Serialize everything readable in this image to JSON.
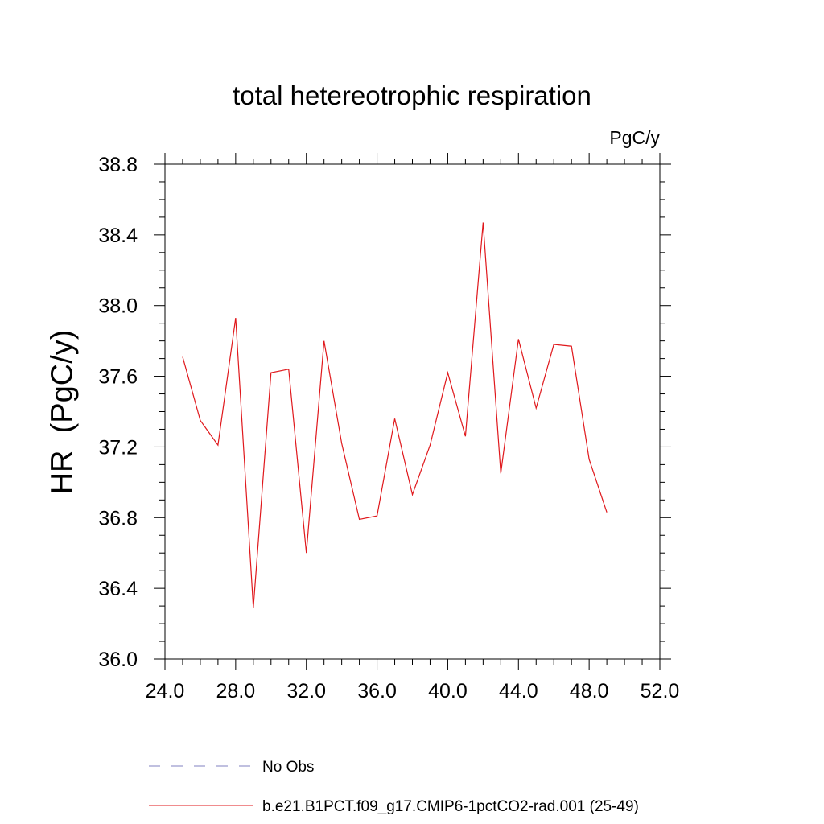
{
  "chart_data": {
    "type": "line",
    "title": "total hetereotrophic respiration",
    "units_label": "PgC/y",
    "ylabel": "HR  (PgC/y)",
    "xlabel": "",
    "xlim": [
      24,
      52
    ],
    "ylim": [
      36.0,
      38.8
    ],
    "xticks": [
      "24.0",
      "28.0",
      "32.0",
      "36.0",
      "40.0",
      "44.0",
      "48.0",
      "52.0"
    ],
    "yticks": [
      "36.0",
      "36.4",
      "36.8",
      "37.2",
      "37.6",
      "38.0",
      "38.4",
      "38.8"
    ],
    "grid": false,
    "legend_position": "bottom",
    "series": [
      {
        "name": "No Obs",
        "color": "#8080c0",
        "style": "dashed",
        "x": [],
        "y": []
      },
      {
        "name": "b.e21.B1PCT.f09_g17.CMIP6-1pctCO2-rad.001 (25-49)",
        "color": "#e0181c",
        "style": "solid",
        "x": [
          25,
          26,
          27,
          28,
          29,
          30,
          31,
          32,
          33,
          34,
          35,
          36,
          37,
          38,
          39,
          40,
          41,
          42,
          43,
          44,
          45,
          46,
          47,
          48,
          49
        ],
        "y": [
          37.71,
          37.35,
          37.21,
          37.93,
          36.29,
          37.62,
          37.64,
          36.6,
          37.8,
          37.22,
          36.79,
          36.81,
          37.36,
          36.93,
          37.21,
          37.62,
          37.26,
          38.47,
          37.05,
          37.81,
          37.42,
          37.78,
          37.77,
          37.13,
          36.83
        ]
      }
    ]
  }
}
